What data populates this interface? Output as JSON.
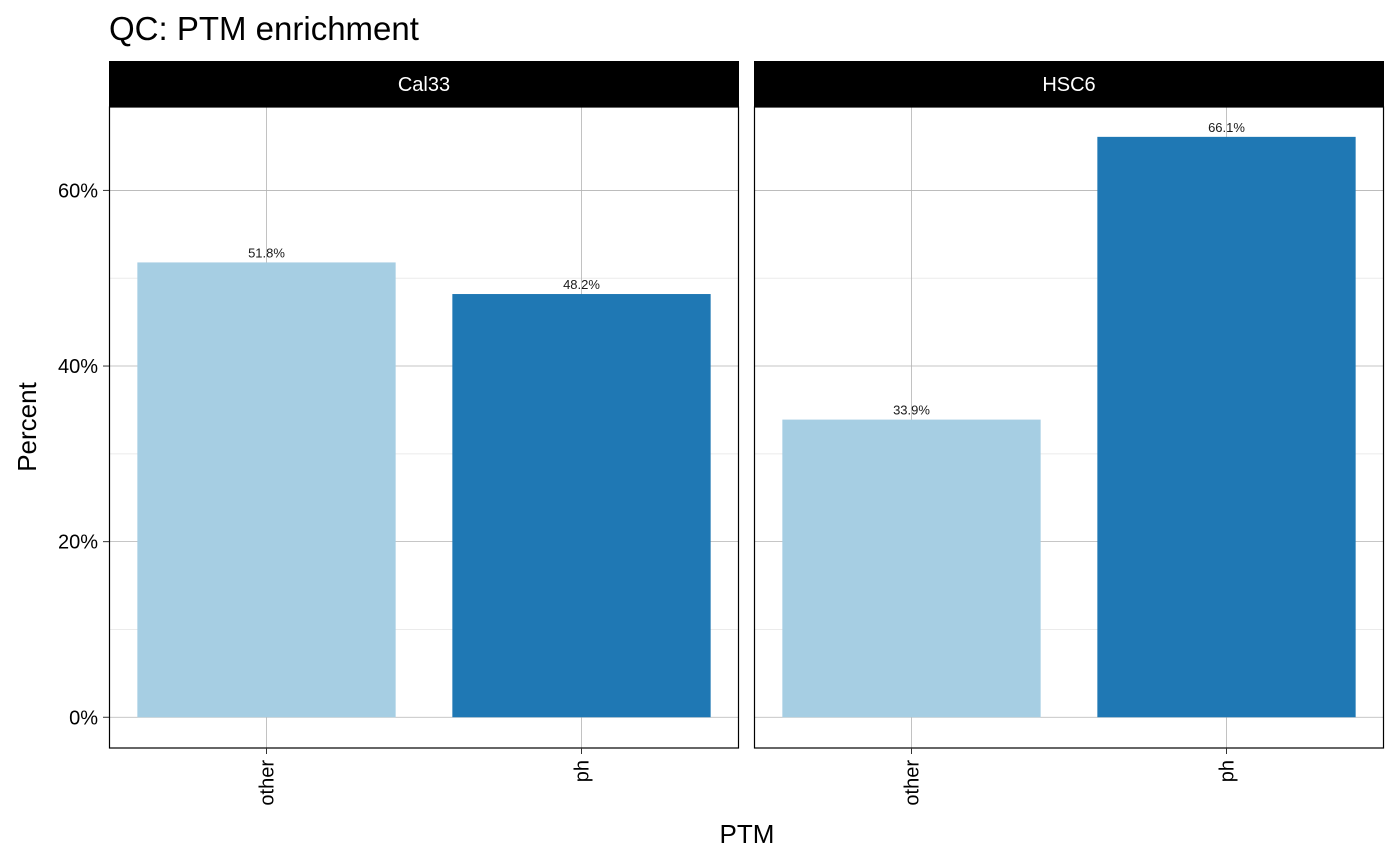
{
  "chart_data": {
    "type": "bar",
    "title": "QC: PTM enrichment",
    "xlabel": "PTM",
    "ylabel": "Percent",
    "ylim": [
      -3.5,
      69.5
    ],
    "yticks": [
      0,
      20,
      40,
      60
    ],
    "ytick_labels": [
      "0%",
      "20%",
      "40%",
      "60%"
    ],
    "grid": true,
    "categories": [
      "other",
      "ph"
    ],
    "colors": {
      "other": "#a6cee3",
      "ph": "#1f78b4"
    },
    "facets": [
      {
        "name": "Cal33",
        "values": [
          51.8,
          48.2
        ],
        "labels": [
          "51.8%",
          "48.2%"
        ]
      },
      {
        "name": "HSC6",
        "values": [
          33.9,
          66.1
        ],
        "labels": [
          "33.9%",
          "66.1%"
        ]
      }
    ]
  }
}
